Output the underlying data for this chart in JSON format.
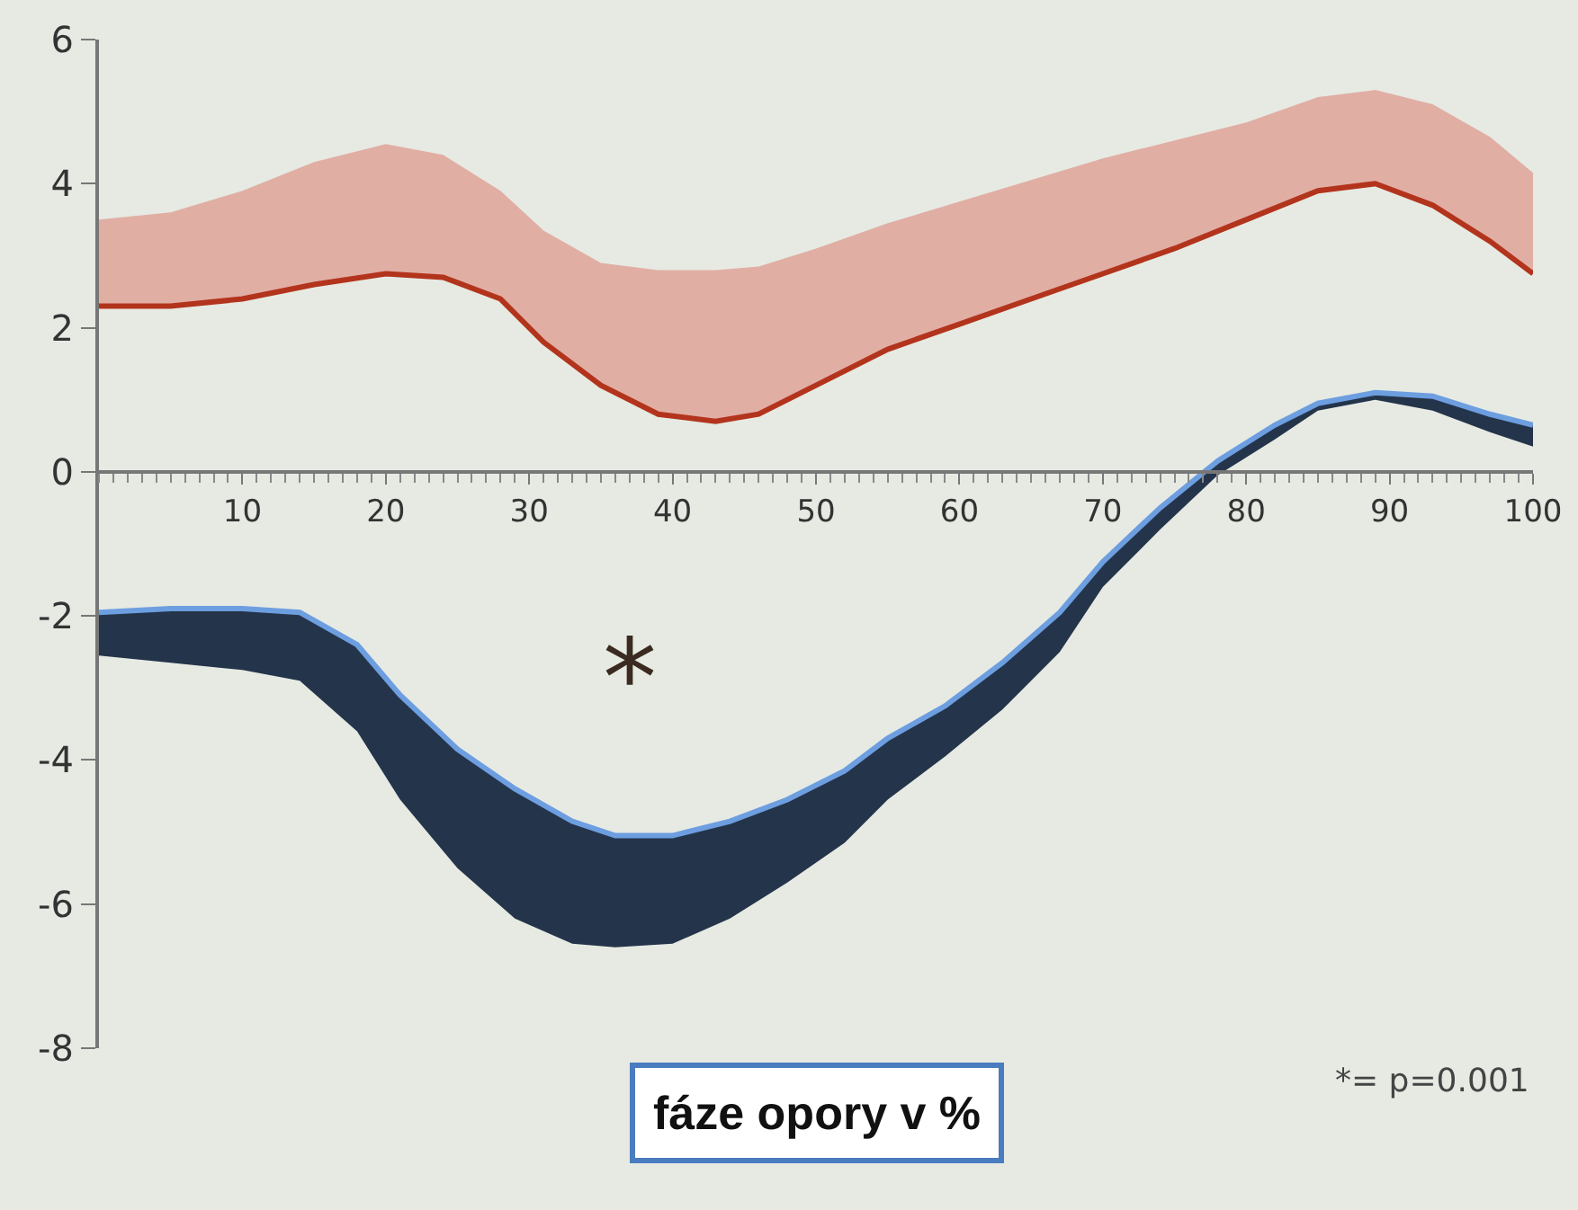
{
  "chart_data": {
    "type": "line",
    "xlabel": "fáze opory v %",
    "annotations": [
      "*",
      "*= p=0.001"
    ],
    "series": [
      {
        "color": "#b3341c",
        "x": [
          0,
          5,
          10,
          15,
          20,
          24,
          28,
          31,
          35,
          39,
          43,
          46,
          50,
          55,
          60,
          65,
          70,
          75,
          80,
          85,
          89,
          93,
          97,
          100
        ],
        "values": [
          2.3,
          2.3,
          2.4,
          2.6,
          2.75,
          2.7,
          2.4,
          1.8,
          1.2,
          0.8,
          0.7,
          0.8,
          1.2,
          1.7,
          2.05,
          2.4,
          2.75,
          3.1,
          3.5,
          3.9,
          4.0,
          3.7,
          3.2,
          2.75
        ],
        "lower": [
          2.3,
          2.3,
          2.4,
          2.6,
          2.75,
          2.7,
          2.4,
          1.8,
          1.2,
          0.8,
          0.7,
          0.8,
          1.2,
          1.7,
          2.05,
          2.4,
          2.75,
          3.1,
          3.5,
          3.9,
          4.0,
          3.7,
          3.2,
          2.75
        ],
        "upper": [
          3.5,
          3.6,
          3.9,
          4.3,
          4.55,
          4.4,
          3.9,
          3.35,
          2.9,
          2.8,
          2.8,
          2.85,
          3.1,
          3.45,
          3.75,
          4.05,
          4.35,
          4.6,
          4.85,
          5.2,
          5.3,
          5.1,
          4.65,
          4.15
        ]
      },
      {
        "color": "#6d9ee0",
        "x": [
          0,
          5,
          10,
          14,
          18,
          21,
          25,
          29,
          33,
          36,
          40,
          44,
          48,
          52,
          55,
          59,
          63,
          67,
          70,
          74,
          78,
          82,
          85,
          89,
          93,
          97,
          100
        ],
        "values": [
          -1.95,
          -1.9,
          -1.9,
          -1.95,
          -2.4,
          -3.1,
          -3.85,
          -4.4,
          -4.85,
          -5.05,
          -5.05,
          -4.85,
          -4.55,
          -4.15,
          -3.7,
          -3.25,
          -2.65,
          -1.95,
          -1.25,
          -0.5,
          0.15,
          0.65,
          0.95,
          1.1,
          1.05,
          0.8,
          0.65
        ],
        "lower": [
          -2.55,
          -2.65,
          -2.75,
          -2.9,
          -3.6,
          -4.55,
          -5.5,
          -6.2,
          -6.55,
          -6.6,
          -6.55,
          -6.2,
          -5.7,
          -5.15,
          -4.55,
          -3.95,
          -3.3,
          -2.5,
          -1.6,
          -0.8,
          -0.05,
          0.45,
          0.85,
          1.0,
          0.85,
          0.55,
          0.35
        ],
        "upper": [
          -1.95,
          -1.9,
          -1.9,
          -1.95,
          -2.4,
          -3.1,
          -3.85,
          -4.4,
          -4.85,
          -5.05,
          -5.05,
          -4.85,
          -4.55,
          -4.15,
          -3.7,
          -3.25,
          -2.65,
          -1.95,
          -1.25,
          -0.5,
          0.15,
          0.65,
          0.95,
          1.1,
          1.05,
          0.8,
          0.65
        ]
      }
    ],
    "xlim": [
      0,
      100
    ],
    "xticks": [
      10,
      20,
      30,
      40,
      50,
      60,
      70,
      80,
      90,
      100
    ],
    "ylim": [
      -8,
      6
    ],
    "yticks": [
      -8,
      -6,
      -4,
      -2,
      0,
      2,
      4,
      6
    ],
    "grid": false
  }
}
